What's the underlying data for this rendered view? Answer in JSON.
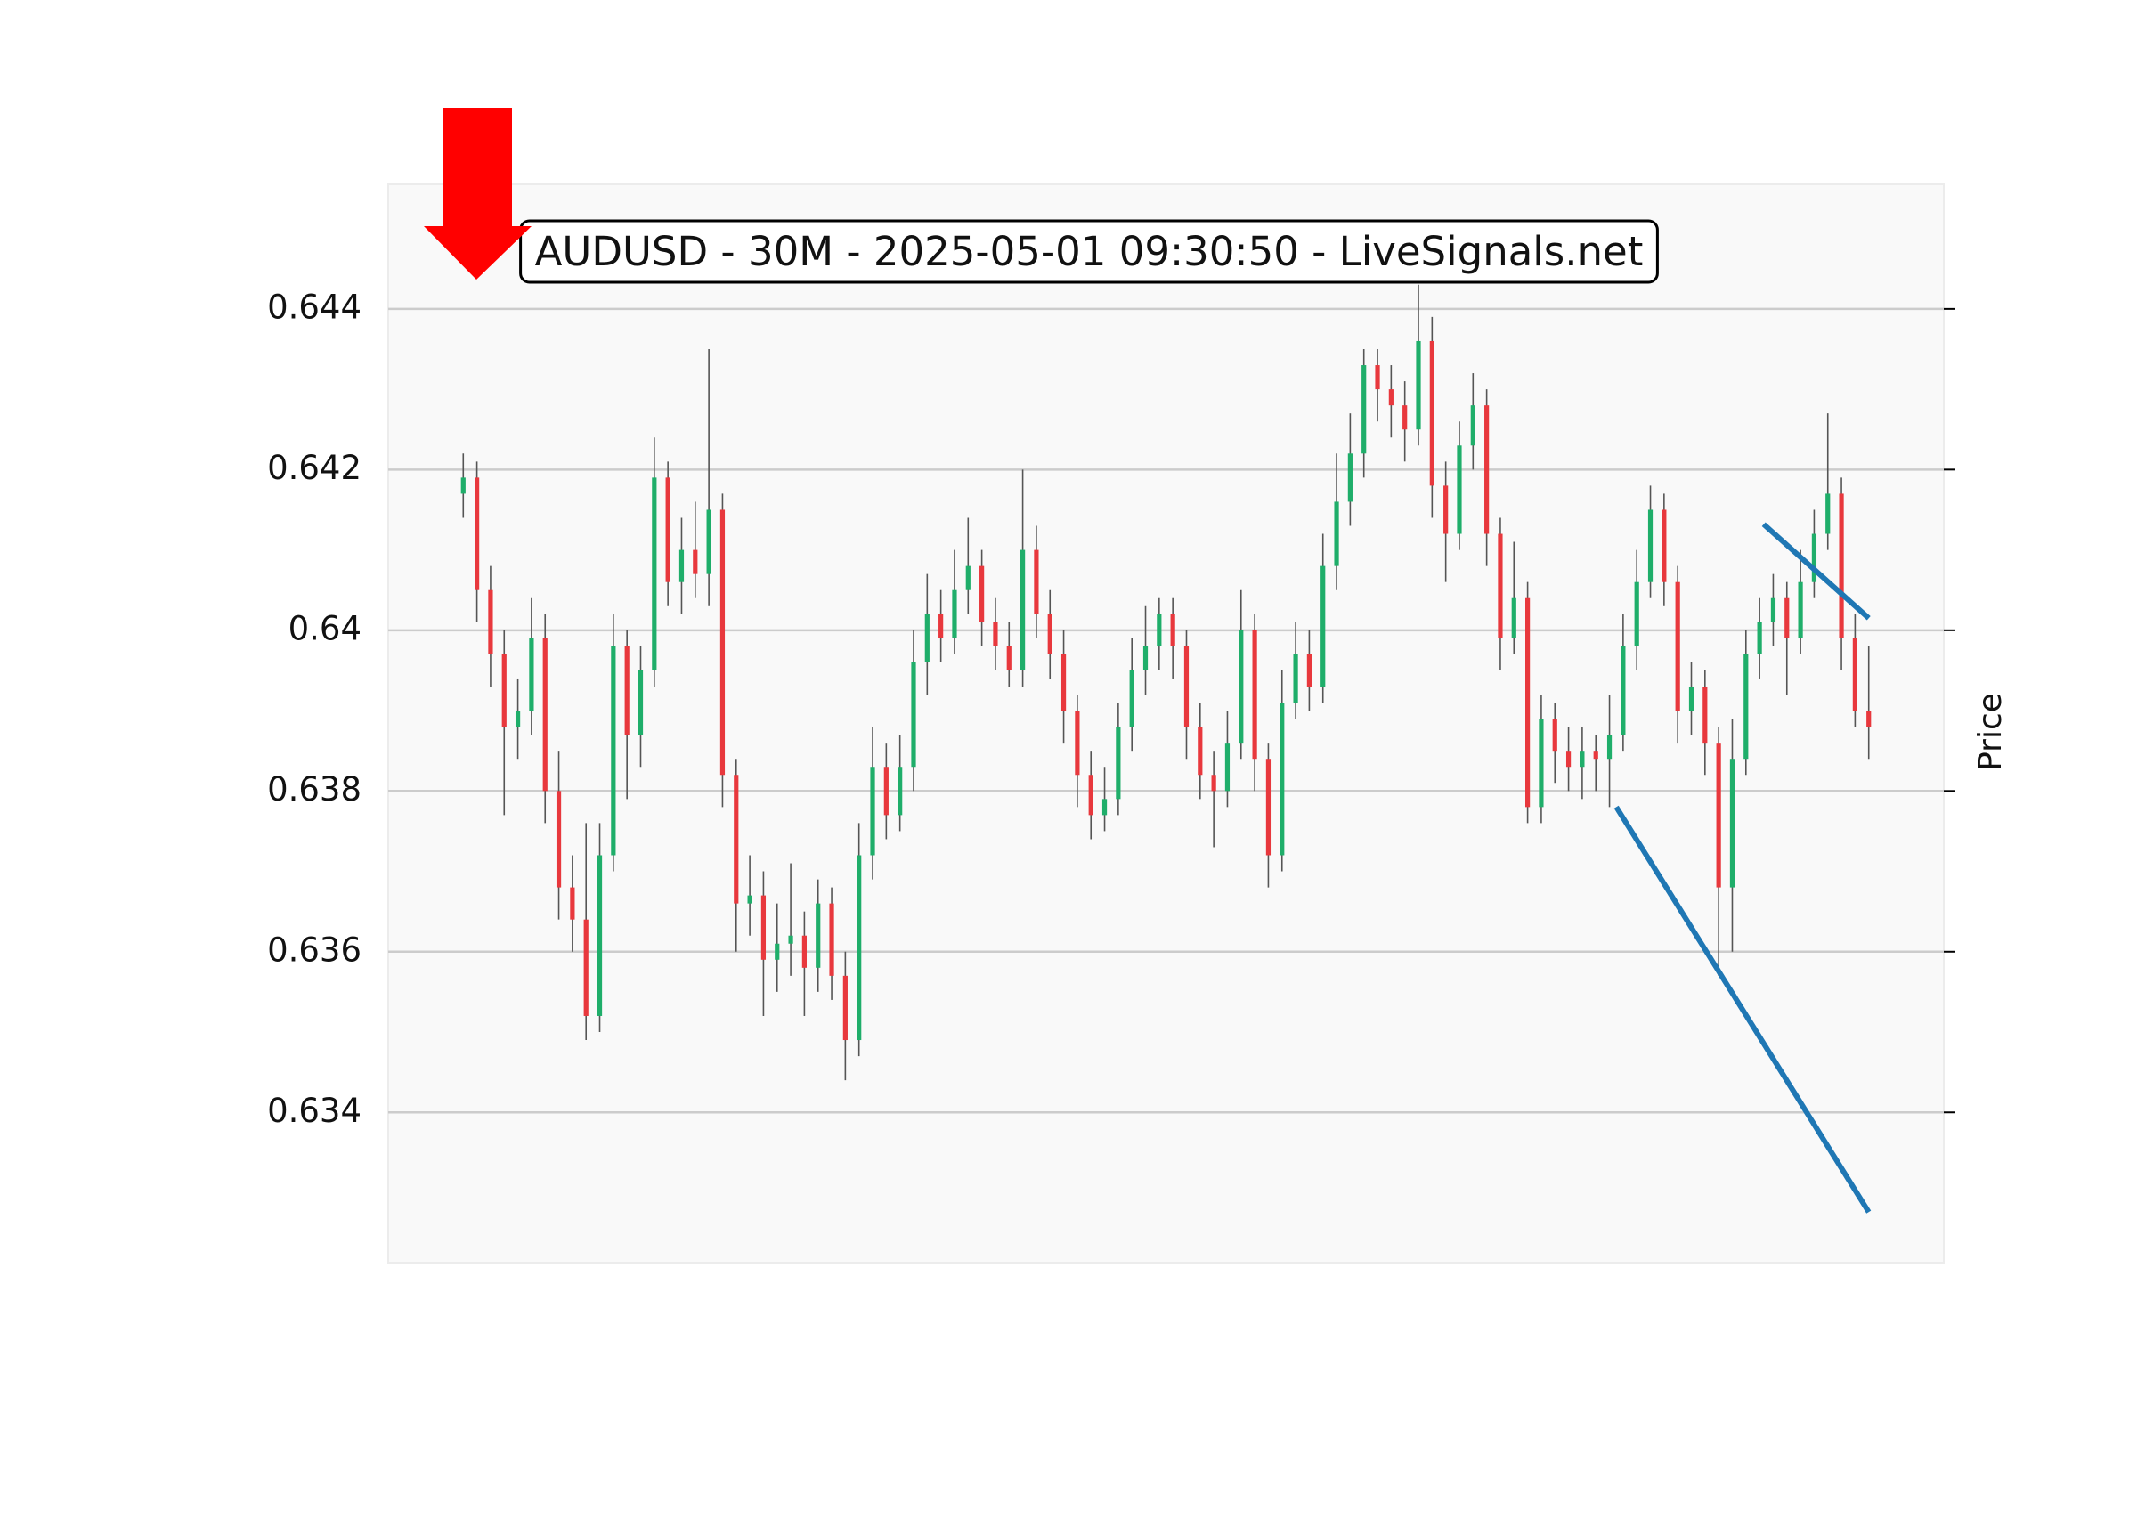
{
  "chart_data": {
    "type": "candlestick",
    "title": "AUDUSD - 30M - 2025-05-01 09:30:50 - LiveSignals.net",
    "y_label": "Price",
    "up_color": "#1fae6a",
    "down_color": "#e8383d",
    "wick_color": "#555555",
    "grid": true,
    "xlim": [
      -5.5,
      108.5
    ],
    "ylim": [
      0.63213,
      0.64555
    ],
    "yticks": [
      0.634,
      0.636,
      0.638,
      0.64,
      0.642,
      0.644
    ],
    "open": [
      0.6417,
      0.6419,
      0.6405,
      0.6397,
      0.6388,
      0.639,
      0.6399,
      0.638,
      0.6368,
      0.6364,
      0.6352,
      0.6372,
      0.6398,
      0.6387,
      0.6395,
      0.6419,
      0.6406,
      0.641,
      0.6407,
      0.6415,
      0.6382,
      0.6366,
      0.6367,
      0.6359,
      0.6361,
      0.6362,
      0.6358,
      0.6366,
      0.6357,
      0.6349,
      0.6372,
      0.6383,
      0.6377,
      0.6383,
      0.6396,
      0.6402,
      0.6399,
      0.6405,
      0.6408,
      0.6401,
      0.6398,
      0.6395,
      0.641,
      0.6402,
      0.6397,
      0.639,
      0.6382,
      0.6377,
      0.6379,
      0.6388,
      0.6395,
      0.6398,
      0.6402,
      0.6398,
      0.6388,
      0.6382,
      0.638,
      0.6386,
      0.64,
      0.6384,
      0.6372,
      0.6391,
      0.6397,
      0.6393,
      0.6408,
      0.6416,
      0.6422,
      0.6433,
      0.643,
      0.6428,
      0.6425,
      0.6436,
      0.6418,
      0.6412,
      0.6423,
      0.6428,
      0.6412,
      0.6399,
      0.6404,
      0.6378,
      0.6389,
      0.6385,
      0.6383,
      0.6385,
      0.6384,
      0.6387,
      0.6398,
      0.6406,
      0.6415,
      0.6406,
      0.639,
      0.6393,
      0.6386,
      0.6368,
      0.6384,
      0.6397,
      0.6401,
      0.6404,
      0.6399,
      0.6406,
      0.6412,
      0.6417,
      0.6399,
      0.639
    ],
    "high": [
      0.6422,
      0.6421,
      0.6408,
      0.64,
      0.6394,
      0.6404,
      0.6402,
      0.6385,
      0.6372,
      0.6376,
      0.6376,
      0.6402,
      0.64,
      0.6398,
      0.6424,
      0.6421,
      0.6414,
      0.6416,
      0.6435,
      0.6417,
      0.6384,
      0.6372,
      0.637,
      0.6366,
      0.6371,
      0.6365,
      0.6369,
      0.6368,
      0.636,
      0.6376,
      0.6388,
      0.6386,
      0.6387,
      0.64,
      0.6407,
      0.6405,
      0.641,
      0.6414,
      0.641,
      0.6404,
      0.6401,
      0.642,
      0.6413,
      0.6405,
      0.64,
      0.6392,
      0.6385,
      0.6383,
      0.6391,
      0.6399,
      0.6403,
      0.6404,
      0.6404,
      0.64,
      0.6391,
      0.6385,
      0.639,
      0.6405,
      0.6402,
      0.6386,
      0.6395,
      0.6401,
      0.64,
      0.6412,
      0.6422,
      0.6427,
      0.6435,
      0.6435,
      0.6433,
      0.6431,
      0.6443,
      0.6439,
      0.6421,
      0.6426,
      0.6432,
      0.643,
      0.6414,
      0.6411,
      0.6406,
      0.6392,
      0.6391,
      0.6388,
      0.6388,
      0.6387,
      0.6392,
      0.6402,
      0.641,
      0.6418,
      0.6417,
      0.6408,
      0.6396,
      0.6395,
      0.6388,
      0.6389,
      0.64,
      0.6404,
      0.6407,
      0.6406,
      0.641,
      0.6415,
      0.6427,
      0.6419,
      0.6402,
      0.6398
    ],
    "low": [
      0.6414,
      0.6401,
      0.6393,
      0.6377,
      0.6384,
      0.6387,
      0.6376,
      0.6364,
      0.636,
      0.6349,
      0.635,
      0.637,
      0.6379,
      0.6383,
      0.6393,
      0.6403,
      0.6402,
      0.6404,
      0.6403,
      0.6378,
      0.636,
      0.6362,
      0.6352,
      0.6355,
      0.6357,
      0.6352,
      0.6355,
      0.6354,
      0.6344,
      0.6347,
      0.6369,
      0.6374,
      0.6375,
      0.638,
      0.6392,
      0.6396,
      0.6397,
      0.6402,
      0.6398,
      0.6395,
      0.6393,
      0.6393,
      0.6399,
      0.6394,
      0.6386,
      0.6378,
      0.6374,
      0.6375,
      0.6377,
      0.6385,
      0.6392,
      0.6395,
      0.6394,
      0.6384,
      0.6379,
      0.6373,
      0.6378,
      0.6384,
      0.638,
      0.6368,
      0.637,
      0.6389,
      0.639,
      0.6391,
      0.6405,
      0.6413,
      0.6419,
      0.6426,
      0.6424,
      0.6421,
      0.6423,
      0.6414,
      0.6406,
      0.641,
      0.642,
      0.6408,
      0.6395,
      0.6397,
      0.6376,
      0.6376,
      0.6381,
      0.638,
      0.6379,
      0.638,
      0.6378,
      0.6385,
      0.6395,
      0.6404,
      0.6403,
      0.6386,
      0.6387,
      0.6382,
      0.6357,
      0.636,
      0.6382,
      0.6394,
      0.6398,
      0.6392,
      0.6397,
      0.6404,
      0.641,
      0.6395,
      0.6388,
      0.6384
    ],
    "close": [
      0.6419,
      0.6405,
      0.6397,
      0.6388,
      0.639,
      0.6399,
      0.638,
      0.6368,
      0.6364,
      0.6352,
      0.6372,
      0.6398,
      0.6387,
      0.6395,
      0.6419,
      0.6406,
      0.641,
      0.6407,
      0.6415,
      0.6382,
      0.6366,
      0.6367,
      0.6359,
      0.6361,
      0.6362,
      0.6358,
      0.6366,
      0.6357,
      0.6349,
      0.6372,
      0.6383,
      0.6377,
      0.6383,
      0.6396,
      0.6402,
      0.6399,
      0.6405,
      0.6408,
      0.6401,
      0.6398,
      0.6395,
      0.641,
      0.6402,
      0.6397,
      0.639,
      0.6382,
      0.6377,
      0.6379,
      0.6388,
      0.6395,
      0.6398,
      0.6402,
      0.6398,
      0.6388,
      0.6382,
      0.638,
      0.6386,
      0.64,
      0.6384,
      0.6372,
      0.6391,
      0.6397,
      0.6393,
      0.6408,
      0.6416,
      0.6422,
      0.6433,
      0.643,
      0.6428,
      0.6425,
      0.6436,
      0.6418,
      0.6412,
      0.6423,
      0.6428,
      0.6412,
      0.6399,
      0.6404,
      0.6378,
      0.6389,
      0.6385,
      0.6383,
      0.6385,
      0.6384,
      0.6387,
      0.6398,
      0.6406,
      0.6415,
      0.6406,
      0.639,
      0.6393,
      0.6386,
      0.6368,
      0.6384,
      0.6397,
      0.6401,
      0.6404,
      0.6399,
      0.6406,
      0.6412,
      0.6417,
      0.6399,
      0.639,
      0.6388
    ],
    "lines": [
      {
        "x": [
          84.5,
          103
        ],
        "y": [
          0.6378,
          0.63276
        ],
        "color": "#1f77b4"
      },
      {
        "x": [
          95.3,
          103
        ],
        "y": [
          0.64132,
          0.64015
        ],
        "color": "#1f77b4"
      }
    ]
  }
}
